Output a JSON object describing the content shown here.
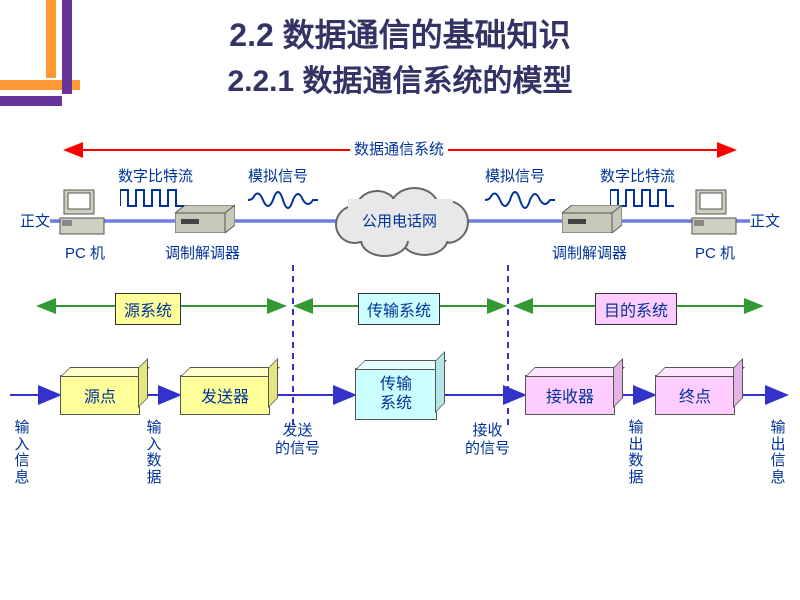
{
  "title": "2.2  数据通信的基础知识",
  "subtitle": "2.2.1 数据通信系统的模型",
  "decor": {
    "colors": {
      "orange": "#ff9933",
      "purple": "#663399"
    }
  },
  "top": {
    "system_label": "数据通信系统",
    "left_text": "正文",
    "right_text": "正文",
    "digital_left": "数字比特流",
    "analog_left": "模拟信号",
    "analog_right": "模拟信号",
    "digital_right": "数字比特流",
    "pc_left": "PC 机",
    "pc_right": "PC 机",
    "modem_left": "调制解调器",
    "modem_right": "调制解调器",
    "cloud": "公用电话网"
  },
  "mid": {
    "source_sys": "源系统",
    "trans_sys": "传输系统",
    "dest_sys": "目的系统"
  },
  "bottom": {
    "nodes": {
      "source": "源点",
      "sender": "发送器",
      "trans": "传输\n系统",
      "receiver": "接收器",
      "dest": "终点"
    },
    "labels": {
      "in_info": "输入信息",
      "in_data": "输入数据",
      "send_sig": "发送\n的信号",
      "recv_sig": "接收\n的信号",
      "out_data": "输出数据",
      "out_info": "输出信息"
    }
  },
  "style": {
    "arrow_red": "#ff0000",
    "arrow_green": "#339933",
    "arrow_blue": "#3333cc",
    "dash": "#3333cc",
    "box_colors": {
      "yellow": "#ffff99",
      "blue": "#ccffff",
      "pink": "#ffccff"
    }
  }
}
